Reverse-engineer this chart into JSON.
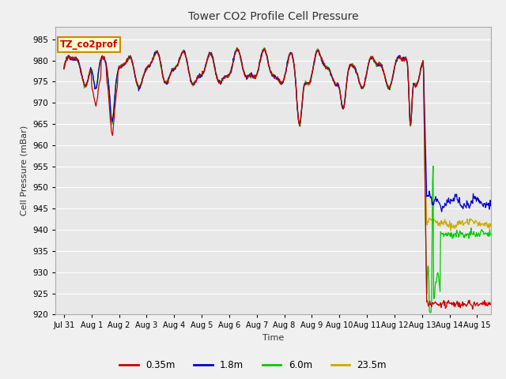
{
  "title": "Tower CO2 Profile Cell Pressure",
  "ylabel": "Cell Pressure (mBar)",
  "xlabel": "Time",
  "ylim": [
    920,
    988
  ],
  "yticks": [
    920,
    925,
    930,
    935,
    940,
    945,
    950,
    955,
    960,
    965,
    970,
    975,
    980,
    985
  ],
  "fig_bg_color": "#f0f0f0",
  "plot_bg_color": "#e8e8e8",
  "grid_color": "#ffffff",
  "colors": {
    "0.35m": "#cc0000",
    "1.8m": "#0000cc",
    "6.0m": "#00cc00",
    "23.5m": "#ccaa00"
  },
  "legend_label": "TZ_co2prof",
  "legend_bg": "#ffffcc",
  "legend_border": "#cc8800",
  "x_tick_labels": [
    "Jul 31",
    "Aug 1",
    "Aug 2",
    "Aug 3",
    "Aug 4",
    "Aug 5",
    "Aug 6",
    "Aug 7",
    "Aug 8",
    "Aug 9",
    "Aug 10",
    "Aug 11",
    "Aug 12",
    "Aug 13",
    "Aug 14",
    "Aug 15"
  ],
  "x_tick_pos": [
    0,
    1,
    2,
    3,
    4,
    5,
    6,
    7,
    8,
    9,
    10,
    11,
    12,
    13,
    14,
    15
  ]
}
